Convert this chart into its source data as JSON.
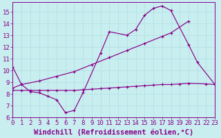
{
  "xlabel": "Windchill (Refroidissement éolien,°C)",
  "xlim": [
    0,
    23
  ],
  "ylim": [
    6,
    15.8
  ],
  "yticks": [
    6,
    7,
    8,
    9,
    10,
    11,
    12,
    13,
    14,
    15
  ],
  "xticks": [
    0,
    1,
    2,
    3,
    4,
    5,
    6,
    7,
    8,
    9,
    10,
    11,
    12,
    13,
    14,
    15,
    16,
    17,
    18,
    19,
    20,
    21,
    22,
    23
  ],
  "background_color": "#c8eef0",
  "grid_color": "#b0dde0",
  "line_color": "#880088",
  "line1_x": [
    0,
    1,
    2,
    3,
    4,
    5,
    6,
    7,
    8,
    10,
    11,
    13,
    14,
    15,
    16,
    17,
    18,
    20,
    21,
    23
  ],
  "line1_y": [
    10.3,
    8.8,
    8.2,
    8.1,
    7.8,
    7.5,
    6.4,
    6.6,
    8.1,
    11.5,
    13.3,
    13.0,
    13.5,
    14.7,
    15.3,
    15.5,
    15.1,
    12.2,
    10.7,
    8.8
  ],
  "line2_x": [
    0,
    1,
    3,
    5,
    7,
    9,
    11,
    13,
    15,
    17,
    18,
    20
  ],
  "line2_y": [
    8.5,
    8.8,
    9.1,
    9.5,
    9.9,
    10.5,
    11.1,
    11.7,
    12.3,
    12.9,
    13.2,
    14.2
  ],
  "line3_x": [
    0,
    1,
    2,
    3,
    4,
    5,
    6,
    7,
    8,
    9,
    10,
    11,
    12,
    13,
    14,
    15,
    16,
    17,
    18,
    19,
    20,
    22,
    23
  ],
  "line3_y": [
    8.3,
    8.3,
    8.3,
    8.3,
    8.3,
    8.3,
    8.3,
    8.3,
    8.35,
    8.4,
    8.45,
    8.5,
    8.55,
    8.6,
    8.65,
    8.7,
    8.75,
    8.8,
    8.8,
    8.85,
    8.9,
    8.85,
    8.8
  ],
  "font_family": "monospace",
  "tick_fontsize": 6.5,
  "label_fontsize": 7.5
}
